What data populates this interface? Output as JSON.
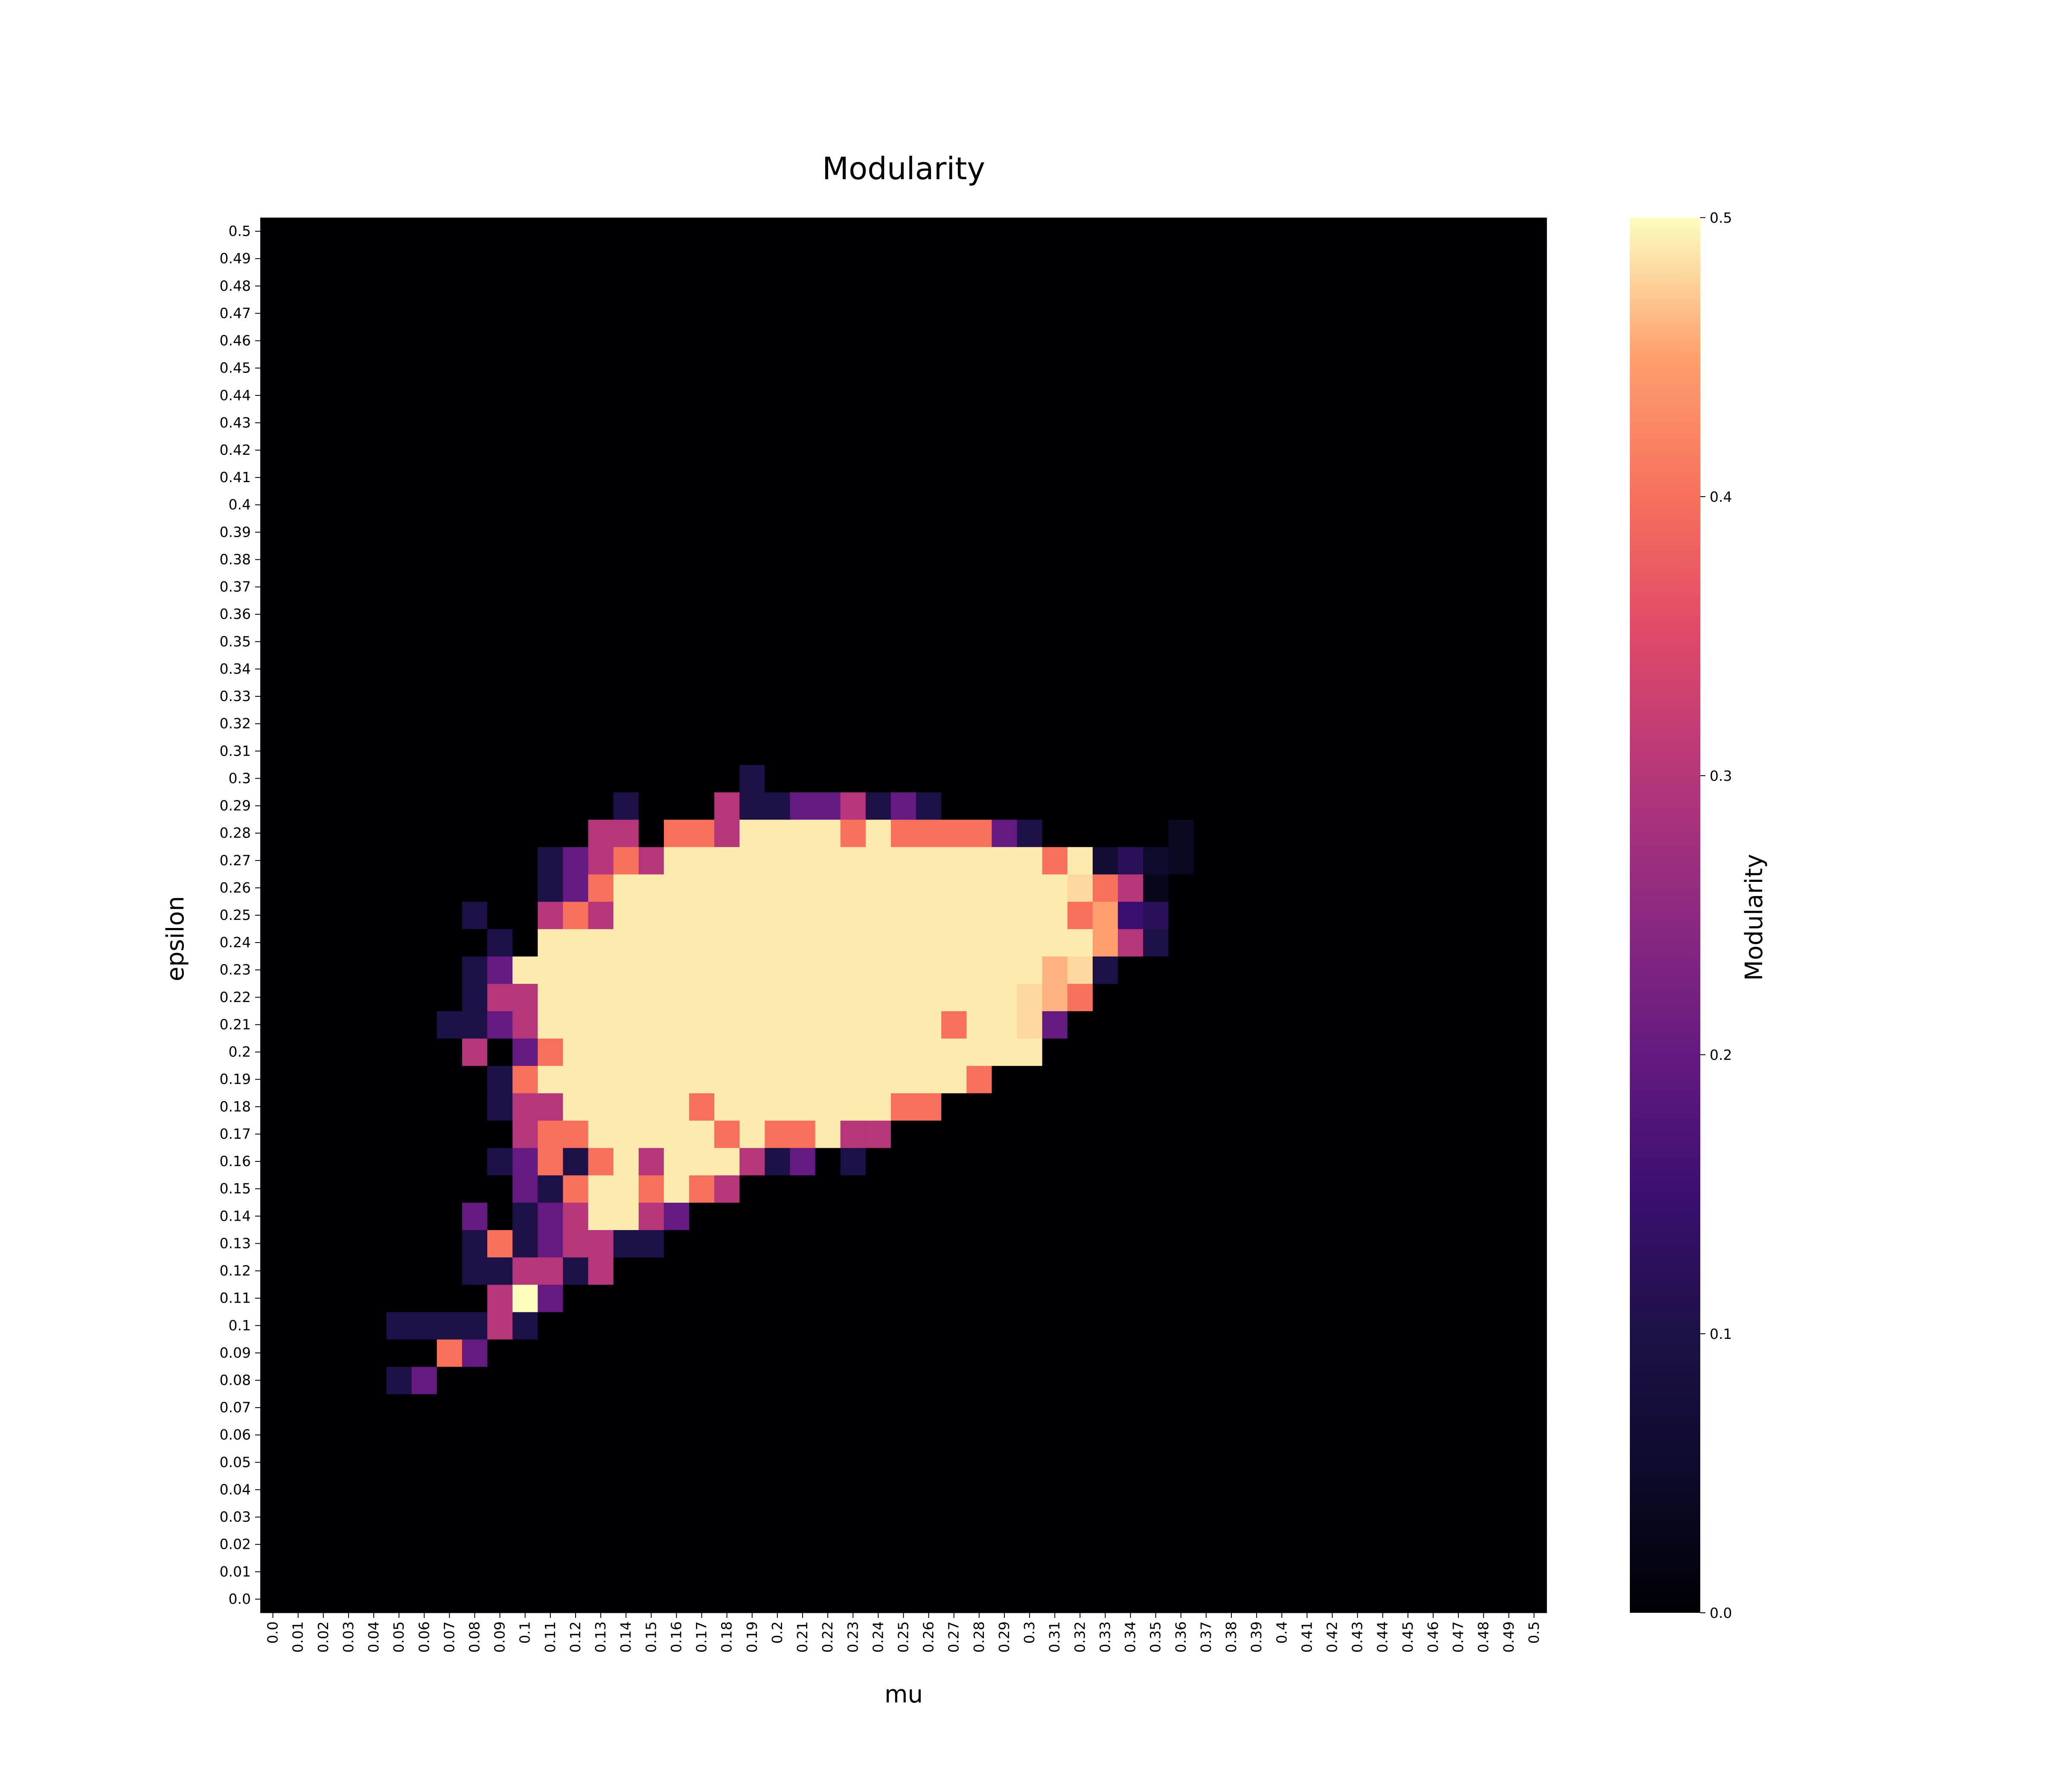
{
  "chart_data": {
    "type": "heatmap",
    "title": "Modularity",
    "xlabel": "mu",
    "ylabel": "epsilon",
    "x_tick_labels": [
      "0.0",
      "0.01",
      "0.02",
      "0.03",
      "0.04",
      "0.05",
      "0.06",
      "0.07",
      "0.08",
      "0.09",
      "0.1",
      "0.11",
      "0.12",
      "0.13",
      "0.14",
      "0.15",
      "0.16",
      "0.17",
      "0.18",
      "0.19",
      "0.2",
      "0.21",
      "0.22",
      "0.23",
      "0.24",
      "0.25",
      "0.26",
      "0.27",
      "0.28",
      "0.29",
      "0.3",
      "0.31",
      "0.32",
      "0.33",
      "0.34",
      "0.35",
      "0.36",
      "0.37",
      "0.38",
      "0.39",
      "0.4",
      "0.41",
      "0.42",
      "0.43",
      "0.44",
      "0.45",
      "0.46",
      "0.47",
      "0.48",
      "0.49",
      "0.5"
    ],
    "y_tick_labels": [
      "0.0",
      "0.01",
      "0.02",
      "0.03",
      "0.04",
      "0.05",
      "0.06",
      "0.07",
      "0.08",
      "0.09",
      "0.1",
      "0.11",
      "0.12",
      "0.13",
      "0.14",
      "0.15",
      "0.16",
      "0.17",
      "0.18",
      "0.19",
      "0.2",
      "0.21",
      "0.22",
      "0.23",
      "0.24",
      "0.25",
      "0.26",
      "0.27",
      "0.28",
      "0.29",
      "0.3",
      "0.31",
      "0.32",
      "0.33",
      "0.34",
      "0.35",
      "0.36",
      "0.37",
      "0.38",
      "0.39",
      "0.4",
      "0.41",
      "0.42",
      "0.43",
      "0.44",
      "0.45",
      "0.46",
      "0.47",
      "0.48",
      "0.49",
      "0.5"
    ],
    "colorbar": {
      "label": "Modularity",
      "colormap": "magma",
      "range": [
        0.0,
        0.5
      ],
      "tick_labels": [
        "0.0",
        "0.1",
        "0.2",
        "0.3",
        "0.4",
        "0.5"
      ]
    },
    "default_value": 0.0,
    "nonzero_cells_by_epsilon": {
      "0.08": {
        "0.05": 0.1,
        "0.06": 0.2
      },
      "0.09": {
        "0.07": 0.4,
        "0.08": 0.2
      },
      "0.1": {
        "0.05": 0.1,
        "0.06": 0.1,
        "0.07": 0.1,
        "0.08": 0.1,
        "0.09": 0.3,
        "0.1": 0.1
      },
      "0.11": {
        "0.09": 0.3,
        "0.1": 0.5,
        "0.11": 0.2
      },
      "0.12": {
        "0.08": 0.1,
        "0.09": 0.1,
        "0.1": 0.3,
        "0.11": 0.3,
        "0.12": 0.1,
        "0.13": 0.3
      },
      "0.13": {
        "0.08": 0.1,
        "0.09": 0.4,
        "0.1": 0.1,
        "0.11": 0.2,
        "0.12": 0.3,
        "0.13": 0.3,
        "0.14": 0.1,
        "0.15": 0.1
      },
      "0.14": {
        "0.08": 0.2,
        "0.1": 0.1,
        "0.11": 0.2,
        "0.12": 0.3,
        "0.13": 0.49,
        "0.14": 0.49,
        "0.15": 0.3,
        "0.16": 0.2
      },
      "0.15": {
        "0.1": 0.2,
        "0.11": 0.1,
        "0.12": 0.4,
        "0.13": 0.49,
        "0.14": 0.49,
        "0.15": 0.4,
        "0.16": 0.49,
        "0.17": 0.4,
        "0.18": 0.3
      },
      "0.16": {
        "0.09": 0.1,
        "0.1": 0.2,
        "0.11": 0.4,
        "0.12": 0.1,
        "0.13": 0.4,
        "0.14": 0.49,
        "0.15": 0.3,
        "0.16": 0.49,
        "0.17": 0.49,
        "0.18": 0.49,
        "0.19": 0.3,
        "0.2": 0.1,
        "0.21": 0.2,
        "0.23": 0.1
      },
      "0.17": {
        "0.1": 0.3,
        "0.11": 0.4,
        "0.12": 0.4,
        "0.13": 0.49,
        "0.14": 0.49,
        "0.15": 0.49,
        "0.16": 0.49,
        "0.17": 0.49,
        "0.18": 0.4,
        "0.19": 0.49,
        "0.2": 0.4,
        "0.21": 0.4,
        "0.22": 0.49,
        "0.23": 0.3,
        "0.24": 0.3
      },
      "0.18": {
        "0.09": 0.1,
        "0.1": 0.3,
        "0.11": 0.3,
        "0.12": 0.49,
        "0.13": 0.49,
        "0.14": 0.49,
        "0.15": 0.49,
        "0.16": 0.49,
        "0.17": 0.4,
        "0.18": 0.49,
        "0.19": 0.49,
        "0.2": 0.49,
        "0.21": 0.49,
        "0.22": 0.49,
        "0.23": 0.49,
        "0.24": 0.49,
        "0.25": 0.4,
        "0.26": 0.4
      },
      "0.19": {
        "0.09": 0.1,
        "0.1": 0.4,
        "0.11": 0.49,
        "0.12": 0.49,
        "0.13": 0.49,
        "0.14": 0.49,
        "0.15": 0.49,
        "0.16": 0.49,
        "0.17": 0.49,
        "0.18": 0.49,
        "0.19": 0.49,
        "0.2": 0.49,
        "0.21": 0.49,
        "0.22": 0.49,
        "0.23": 0.49,
        "0.24": 0.49,
        "0.25": 0.49,
        "0.26": 0.49,
        "0.27": 0.49,
        "0.28": 0.4
      },
      "0.2": {
        "0.08": 0.3,
        "0.1": 0.2,
        "0.11": 0.4,
        "0.12": 0.49,
        "0.13": 0.49,
        "0.14": 0.49,
        "0.15": 0.49,
        "0.16": 0.49,
        "0.17": 0.49,
        "0.18": 0.49,
        "0.19": 0.49,
        "0.2": 0.49,
        "0.21": 0.49,
        "0.22": 0.49,
        "0.23": 0.49,
        "0.24": 0.49,
        "0.25": 0.49,
        "0.26": 0.49,
        "0.27": 0.49,
        "0.28": 0.49,
        "0.29": 0.49,
        "0.3": 0.49
      },
      "0.21": {
        "0.07": 0.1,
        "0.08": 0.1,
        "0.09": 0.2,
        "0.1": 0.3,
        "0.11": 0.49,
        "0.12": 0.49,
        "0.13": 0.49,
        "0.14": 0.49,
        "0.15": 0.49,
        "0.16": 0.49,
        "0.17": 0.49,
        "0.18": 0.49,
        "0.19": 0.49,
        "0.2": 0.49,
        "0.21": 0.49,
        "0.22": 0.49,
        "0.23": 0.49,
        "0.24": 0.49,
        "0.25": 0.49,
        "0.26": 0.49,
        "0.27": 0.4,
        "0.28": 0.49,
        "0.29": 0.49,
        "0.3": 0.48,
        "0.31": 0.2
      },
      "0.22": {
        "0.08": 0.1,
        "0.09": 0.3,
        "0.1": 0.3,
        "0.11": 0.49,
        "0.12": 0.49,
        "0.13": 0.49,
        "0.14": 0.49,
        "0.15": 0.49,
        "0.16": 0.49,
        "0.17": 0.49,
        "0.18": 0.49,
        "0.19": 0.49,
        "0.2": 0.49,
        "0.21": 0.49,
        "0.22": 0.49,
        "0.23": 0.49,
        "0.24": 0.49,
        "0.25": 0.49,
        "0.26": 0.49,
        "0.27": 0.49,
        "0.28": 0.49,
        "0.29": 0.49,
        "0.3": 0.48,
        "0.31": 0.46,
        "0.32": 0.4
      },
      "0.23": {
        "0.08": 0.1,
        "0.09": 0.2,
        "0.1": 0.49,
        "0.11": 0.49,
        "0.12": 0.49,
        "0.13": 0.49,
        "0.14": 0.49,
        "0.15": 0.49,
        "0.16": 0.49,
        "0.17": 0.49,
        "0.18": 0.49,
        "0.19": 0.49,
        "0.2": 0.49,
        "0.21": 0.49,
        "0.22": 0.49,
        "0.23": 0.49,
        "0.24": 0.49,
        "0.25": 0.49,
        "0.26": 0.49,
        "0.27": 0.49,
        "0.28": 0.49,
        "0.29": 0.49,
        "0.3": 0.49,
        "0.31": 0.46,
        "0.32": 0.48,
        "0.33": 0.1
      },
      "0.24": {
        "0.09": 0.1,
        "0.11": 0.49,
        "0.12": 0.49,
        "0.13": 0.49,
        "0.14": 0.49,
        "0.15": 0.49,
        "0.16": 0.49,
        "0.17": 0.49,
        "0.18": 0.49,
        "0.19": 0.49,
        "0.2": 0.49,
        "0.21": 0.49,
        "0.22": 0.49,
        "0.23": 0.49,
        "0.24": 0.49,
        "0.25": 0.49,
        "0.26": 0.49,
        "0.27": 0.49,
        "0.28": 0.49,
        "0.29": 0.49,
        "0.3": 0.49,
        "0.31": 0.49,
        "0.32": 0.49,
        "0.33": 0.45,
        "0.34": 0.3,
        "0.35": 0.1
      },
      "0.25": {
        "0.08": 0.1,
        "0.11": 0.3,
        "0.12": 0.4,
        "0.13": 0.3,
        "0.14": 0.49,
        "0.15": 0.49,
        "0.16": 0.49,
        "0.17": 0.49,
        "0.18": 0.49,
        "0.19": 0.49,
        "0.2": 0.49,
        "0.21": 0.49,
        "0.22": 0.49,
        "0.23": 0.49,
        "0.24": 0.49,
        "0.25": 0.49,
        "0.26": 0.49,
        "0.27": 0.49,
        "0.28": 0.49,
        "0.29": 0.49,
        "0.3": 0.49,
        "0.31": 0.49,
        "0.32": 0.4,
        "0.33": 0.45,
        "0.34": 0.15,
        "0.35": 0.12
      },
      "0.26": {
        "0.11": 0.1,
        "0.12": 0.2,
        "0.13": 0.4,
        "0.14": 0.49,
        "0.15": 0.49,
        "0.16": 0.49,
        "0.17": 0.49,
        "0.18": 0.49,
        "0.19": 0.49,
        "0.2": 0.49,
        "0.21": 0.49,
        "0.22": 0.49,
        "0.23": 0.49,
        "0.24": 0.49,
        "0.25": 0.49,
        "0.26": 0.49,
        "0.27": 0.49,
        "0.28": 0.49,
        "0.29": 0.49,
        "0.3": 0.49,
        "0.31": 0.49,
        "0.32": 0.48,
        "0.33": 0.4,
        "0.34": 0.3,
        "0.35": 0.03
      },
      "0.27": {
        "0.11": 0.1,
        "0.12": 0.2,
        "0.13": 0.3,
        "0.14": 0.4,
        "0.15": 0.3,
        "0.16": 0.49,
        "0.17": 0.49,
        "0.18": 0.49,
        "0.19": 0.49,
        "0.2": 0.49,
        "0.21": 0.49,
        "0.22": 0.49,
        "0.23": 0.49,
        "0.24": 0.49,
        "0.25": 0.49,
        "0.26": 0.49,
        "0.27": 0.49,
        "0.28": 0.49,
        "0.29": 0.49,
        "0.3": 0.49,
        "0.31": 0.4,
        "0.32": 0.49,
        "0.33": 0.07,
        "0.34": 0.12,
        "0.35": 0.05,
        "0.36": 0.04
      },
      "0.28": {
        "0.13": 0.3,
        "0.14": 0.3,
        "0.16": 0.4,
        "0.17": 0.4,
        "0.18": 0.3,
        "0.19": 0.49,
        "0.2": 0.49,
        "0.21": 0.49,
        "0.22": 0.49,
        "0.23": 0.4,
        "0.24": 0.49,
        "0.25": 0.4,
        "0.26": 0.4,
        "0.27": 0.4,
        "0.28": 0.4,
        "0.29": 0.2,
        "0.3": 0.1,
        "0.36": 0.04
      },
      "0.29": {
        "0.14": 0.1,
        "0.18": 0.3,
        "0.19": 0.1,
        "0.2": 0.1,
        "0.21": 0.2,
        "0.22": 0.2,
        "0.23": 0.3,
        "0.24": 0.1,
        "0.25": 0.2,
        "0.26": 0.1
      },
      "0.3": {
        "0.19": 0.1
      }
    }
  }
}
